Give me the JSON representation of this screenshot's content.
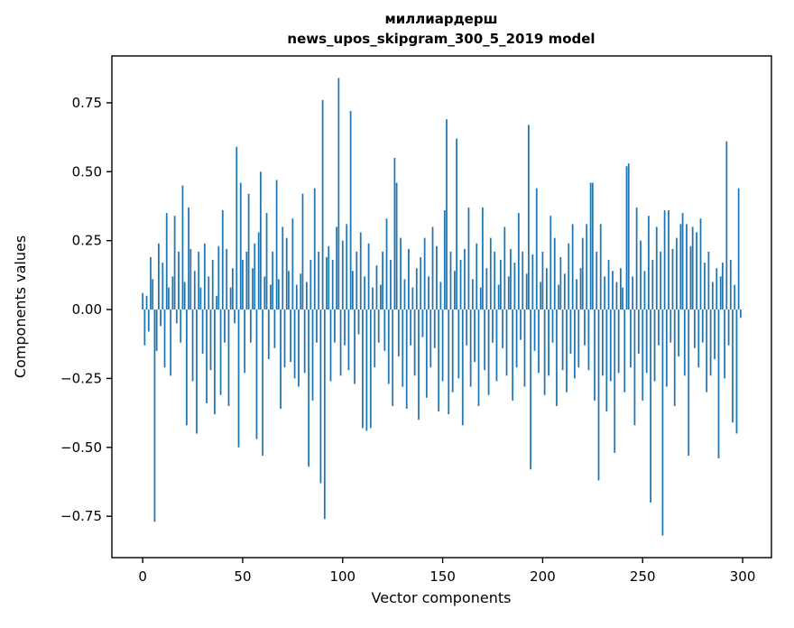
{
  "chart_data": {
    "type": "bar",
    "title_line1": "миллиардерш",
    "title_line2": "news_upos_skipgram_300_5_2019 model",
    "xlabel": "Vector components",
    "ylabel": "Components values",
    "xlim": [
      -15.4,
      314.4
    ],
    "ylim": [
      -0.9,
      0.92
    ],
    "xticks": [
      0,
      50,
      100,
      150,
      200,
      250,
      300
    ],
    "yticks": [
      -0.75,
      -0.5,
      -0.25,
      0.0,
      0.25,
      0.5,
      0.75
    ],
    "ytick_labels": [
      "−0.75",
      "−0.50",
      "−0.25",
      "0.00",
      "0.25",
      "0.50",
      "0.75"
    ],
    "bar_color": "#1f77b4",
    "grid": false,
    "legend": "none",
    "values": [
      0.06,
      -0.13,
      0.05,
      -0.08,
      0.19,
      0.11,
      -0.77,
      -0.15,
      0.24,
      -0.06,
      0.17,
      -0.21,
      0.35,
      0.08,
      -0.24,
      0.12,
      0.34,
      -0.05,
      0.21,
      -0.12,
      0.45,
      0.1,
      -0.42,
      0.37,
      0.22,
      -0.26,
      0.14,
      -0.45,
      0.21,
      0.08,
      -0.16,
      0.24,
      -0.34,
      0.12,
      -0.22,
      0.18,
      -0.38,
      0.05,
      0.23,
      -0.31,
      0.36,
      -0.12,
      0.22,
      -0.35,
      0.08,
      0.15,
      -0.05,
      0.59,
      -0.5,
      0.46,
      0.18,
      -0.23,
      0.21,
      0.42,
      -0.12,
      0.15,
      0.24,
      -0.47,
      0.28,
      0.5,
      -0.53,
      0.12,
      0.35,
      -0.18,
      0.09,
      0.21,
      -0.14,
      0.47,
      0.11,
      -0.36,
      0.3,
      -0.21,
      0.26,
      0.14,
      -0.19,
      0.33,
      -0.25,
      0.09,
      -0.28,
      0.13,
      0.42,
      -0.23,
      0.1,
      -0.57,
      0.18,
      -0.33,
      0.44,
      -0.12,
      0.21,
      -0.63,
      0.76,
      -0.76,
      0.19,
      0.23,
      -0.26,
      0.18,
      -0.12,
      0.3,
      0.84,
      -0.24,
      0.25,
      -0.13,
      0.31,
      -0.22,
      0.72,
      0.14,
      -0.27,
      0.21,
      -0.09,
      0.28,
      -0.43,
      0.12,
      -0.44,
      0.24,
      -0.43,
      0.08,
      -0.21,
      0.16,
      -0.12,
      0.09,
      0.21,
      -0.15,
      0.33,
      -0.27,
      0.18,
      -0.35,
      0.55,
      0.46,
      -0.17,
      0.26,
      -0.28,
      0.11,
      -0.36,
      0.22,
      -0.13,
      0.08,
      -0.24,
      0.15,
      -0.4,
      0.19,
      -0.1,
      0.26,
      -0.32,
      0.12,
      -0.21,
      0.3,
      -0.14,
      0.23,
      -0.37,
      0.1,
      -0.26,
      0.36,
      0.69,
      -0.38,
      0.21,
      -0.3,
      0.14,
      0.62,
      -0.25,
      0.18,
      -0.42,
      0.22,
      -0.13,
      0.37,
      -0.28,
      0.11,
      -0.19,
      0.24,
      -0.35,
      0.08,
      0.37,
      -0.22,
      0.15,
      -0.31,
      0.26,
      -0.12,
      0.21,
      -0.26,
      0.09,
      0.18,
      -0.14,
      0.3,
      -0.24,
      0.12,
      0.22,
      -0.33,
      0.17,
      -0.21,
      0.35,
      -0.11,
      0.21,
      -0.28,
      0.13,
      0.67,
      -0.58,
      0.2,
      -0.15,
      0.44,
      -0.23,
      0.1,
      0.21,
      -0.31,
      0.15,
      -0.24,
      0.34,
      -0.12,
      0.26,
      -0.35,
      0.09,
      0.19,
      -0.22,
      0.13,
      -0.3,
      0.24,
      -0.16,
      0.31,
      -0.25,
      0.11,
      -0.21,
      0.15,
      0.26,
      -0.13,
      0.31,
      -0.22,
      0.46,
      0.46,
      -0.33,
      0.21,
      -0.62,
      0.31,
      -0.24,
      0.12,
      -0.37,
      0.18,
      -0.26,
      0.14,
      -0.52,
      0.1,
      -0.23,
      0.15,
      0.08,
      -0.3,
      0.52,
      0.53,
      -0.21,
      0.12,
      -0.42,
      0.37,
      -0.16,
      0.25,
      -0.33,
      0.14,
      -0.23,
      0.34,
      -0.7,
      0.18,
      -0.26,
      0.3,
      -0.13,
      0.21,
      -0.82,
      0.36,
      -0.28,
      0.36,
      -0.12,
      0.22,
      -0.35,
      0.26,
      -0.17,
      0.31,
      0.35,
      -0.24,
      0.31,
      -0.53,
      0.23,
      0.3,
      -0.14,
      0.28,
      -0.21,
      0.33,
      -0.12,
      0.17,
      -0.3,
      0.21,
      -0.24,
      0.1,
      -0.18,
      0.15,
      -0.54,
      0.12,
      0.17,
      -0.25,
      0.61,
      -0.13,
      0.18,
      -0.41,
      0.09,
      -0.45,
      0.44,
      -0.03
    ]
  }
}
